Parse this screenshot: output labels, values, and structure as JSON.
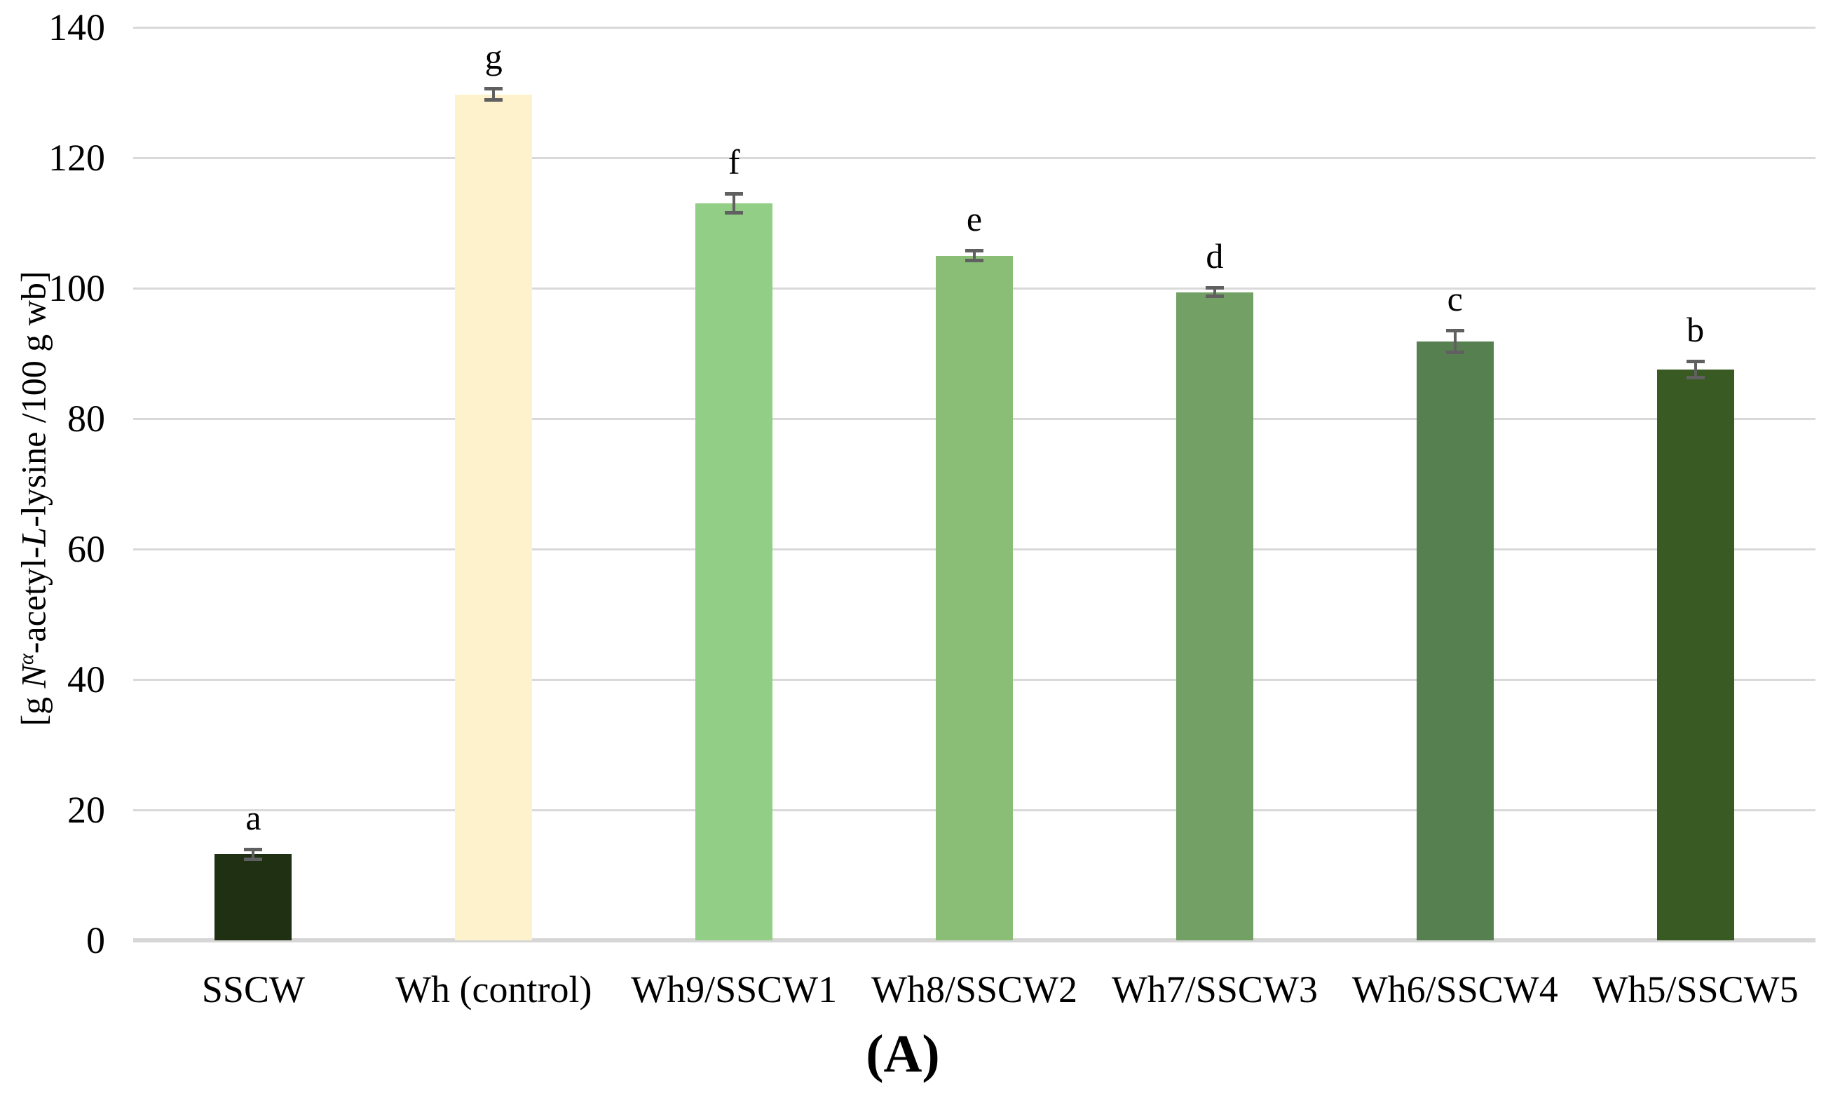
{
  "figure": {
    "caption": "(A)"
  },
  "chart_data": {
    "type": "bar",
    "title": "",
    "xlabel": "",
    "ylabel": "[g Nα-acetyl-L-lysine /100 g wb]",
    "ylabel_segments": [
      {
        "t": "[g "
      },
      {
        "t": "N",
        "italic": true
      },
      {
        "t": "α",
        "italic": true,
        "sup": true
      },
      {
        "t": "-acetyl-"
      },
      {
        "t": "L",
        "italic": true
      },
      {
        "t": "-lysine /100 g wb]"
      }
    ],
    "categories": [
      "SSCW",
      "Wh (control)",
      "Wh9/SSCW1",
      "Wh8/SSCW2",
      "Wh7/SSCW3",
      "Wh6/SSCW4",
      "Wh5/SSCW5"
    ],
    "values": [
      13.2,
      129.7,
      113.0,
      105.0,
      99.4,
      91.8,
      87.5
    ],
    "errors": [
      0.8,
      0.9,
      1.5,
      0.8,
      0.7,
      1.7,
      1.3
    ],
    "significance_letters": [
      "a",
      "g",
      "f",
      "e",
      "d",
      "c",
      "b"
    ],
    "bar_colors": [
      "#203012",
      "#fdf2cc",
      "#92ce85",
      "#8abe77",
      "#73a065",
      "#578051",
      "#3a5a23"
    ],
    "ylim": [
      0,
      140
    ],
    "yticks": [
      0,
      20,
      40,
      60,
      80,
      100,
      120,
      140
    ],
    "grid": "horizontal",
    "gridline_color": "#d9d9d9",
    "error_bar_color": "#606060",
    "legend": "none"
  }
}
